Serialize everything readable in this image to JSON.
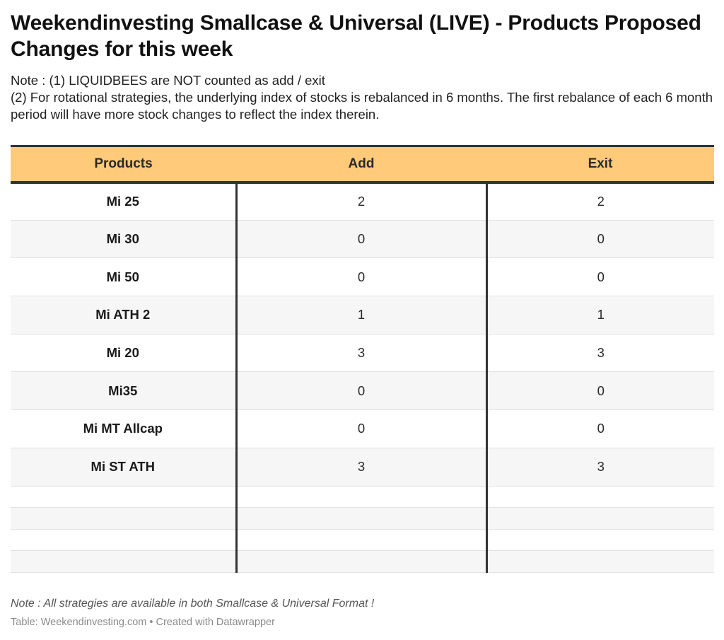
{
  "title": "Weekendinvesting Smallcase & Universal (LIVE) - Products Proposed Changes for this week",
  "notes": [
    "Note : (1) LIQUIDBEES are NOT counted as add / exit",
    "(2) For rotational strategies, the underlying index of stocks is rebalanced in 6 months. The first rebalance of each 6 month period will have more stock changes to reflect the index therein."
  ],
  "chart_data": {
    "type": "table",
    "columns": [
      "Products",
      "Add",
      "Exit"
    ],
    "rows": [
      [
        "Mi 25",
        "2",
        "2"
      ],
      [
        "Mi 30",
        "0",
        "0"
      ],
      [
        "Mi 50",
        "0",
        "0"
      ],
      [
        "Mi ATH 2",
        "1",
        "1"
      ],
      [
        "Mi 20",
        "3",
        "3"
      ],
      [
        "Mi35",
        "0",
        "0"
      ],
      [
        "Mi MT Allcap",
        "0",
        "0"
      ],
      [
        "Mi ST ATH",
        "3",
        "3"
      ]
    ],
    "empty_rows": 4,
    "colors": {
      "header_bg": "#ffca7a",
      "rule": "#333333",
      "stripe": "#f6f6f6"
    }
  },
  "footnote": "Note : All strategies are available in both Smallcase & Universal Format !",
  "source": "Table: Weekendinvesting.com • Created with Datawrapper"
}
